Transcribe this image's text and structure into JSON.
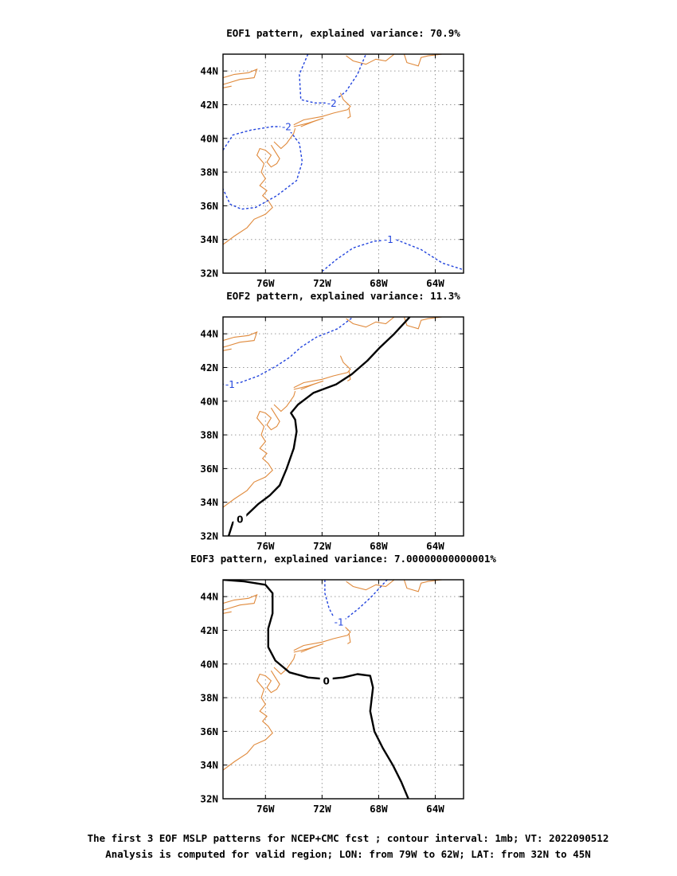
{
  "colors": {
    "coast": "#e08a3c",
    "negative_contour": "#2244dd",
    "zero_contour": "#000000",
    "grid": "#9a9a9a"
  },
  "caption": {
    "line1": "The first 3 EOF MSLP patterns for NCEP+CMC fcst ; contour interval: 1mb; VT: 2022090512",
    "line2": "Analysis is computed for valid region; LON: from 79W to 62W; LAT: from 32N to 45N"
  },
  "chart_data": [
    {
      "type": "contour map",
      "title": "EOF1 pattern, explained variance: 70.9%",
      "xlim": [
        -79,
        -62
      ],
      "ylim": [
        32,
        45
      ],
      "x_ticks": [
        -76,
        -72,
        -68,
        -64
      ],
      "x_tick_labels": [
        "76W",
        "72W",
        "68W",
        "64W"
      ],
      "y_ticks": [
        32,
        34,
        36,
        38,
        40,
        42,
        44
      ],
      "y_tick_labels": [
        "32N",
        "34N",
        "36N",
        "38N",
        "40N",
        "42N",
        "44N"
      ],
      "grid": true,
      "contours": [
        {
          "level": -2,
          "label": "-2",
          "style": "dashed",
          "color": "blue",
          "points": [
            [
              -73.0,
              45.0
            ],
            [
              -73.6,
              43.8
            ],
            [
              -73.5,
              42.3
            ],
            [
              -72.5,
              42.1
            ],
            [
              -71.3,
              42.1
            ],
            [
              -70.3,
              42.8
            ],
            [
              -69.5,
              43.8
            ],
            [
              -68.9,
              45.0
            ]
          ],
          "label_at": [
            -71.3,
            42.1
          ]
        },
        {
          "level": -2,
          "label": "-2",
          "style": "dashed",
          "color": "blue",
          "points": [
            [
              -79.0,
              39.3
            ],
            [
              -78.3,
              40.2
            ],
            [
              -77.0,
              40.5
            ],
            [
              -75.5,
              40.7
            ],
            [
              -74.5,
              40.7
            ],
            [
              -73.6,
              39.7
            ],
            [
              -73.4,
              38.6
            ],
            [
              -73.8,
              37.5
            ],
            [
              -75.2,
              36.6
            ],
            [
              -76.7,
              35.9
            ],
            [
              -77.7,
              35.8
            ],
            [
              -78.5,
              36.1
            ],
            [
              -79.0,
              37.0
            ]
          ],
          "label_at": [
            -74.5,
            40.7
          ]
        },
        {
          "level": -1,
          "label": "-1",
          "style": "dashed",
          "color": "blue",
          "points": [
            [
              -72.0,
              32.1
            ],
            [
              -71.0,
              32.8
            ],
            [
              -69.8,
              33.5
            ],
            [
              -68.3,
              33.9
            ],
            [
              -66.8,
              34.0
            ],
            [
              -65.0,
              33.4
            ],
            [
              -63.5,
              32.6
            ],
            [
              -62.0,
              32.2
            ]
          ],
          "label_at": [
            -67.3,
            34.0
          ]
        }
      ]
    },
    {
      "type": "contour map",
      "title": "EOF2 pattern, explained variance: 11.3%",
      "xlim": [
        -79,
        -62
      ],
      "ylim": [
        32,
        45
      ],
      "x_ticks": [
        -76,
        -72,
        -68,
        -64
      ],
      "x_tick_labels": [
        "76W",
        "72W",
        "68W",
        "64W"
      ],
      "y_ticks": [
        32,
        34,
        36,
        38,
        40,
        42,
        44
      ],
      "y_tick_labels": [
        "32N",
        "34N",
        "36N",
        "38N",
        "40N",
        "42N",
        "44N"
      ],
      "grid": true,
      "contours": [
        {
          "level": -1,
          "label": "-1",
          "style": "dashed",
          "color": "blue",
          "points": [
            [
              -79.0,
              41.0
            ],
            [
              -77.8,
              41.1
            ],
            [
              -76.5,
              41.5
            ],
            [
              -75.2,
              42.1
            ],
            [
              -74.3,
              42.6
            ],
            [
              -73.5,
              43.2
            ],
            [
              -72.4,
              43.8
            ],
            [
              -70.9,
              44.3
            ],
            [
              -69.8,
              45.0
            ]
          ],
          "label_at": [
            -78.5,
            41.0
          ]
        },
        {
          "level": 0,
          "label": "0",
          "style": "solid",
          "color": "black",
          "points": [
            [
              -78.6,
              32.0
            ],
            [
              -78.3,
              32.8
            ],
            [
              -77.5,
              33.1
            ],
            [
              -76.5,
              33.9
            ],
            [
              -75.7,
              34.4
            ],
            [
              -75.0,
              35.0
            ],
            [
              -74.5,
              36.0
            ],
            [
              -74.0,
              37.2
            ],
            [
              -73.8,
              38.2
            ],
            [
              -73.9,
              38.9
            ],
            [
              -74.2,
              39.3
            ],
            [
              -73.7,
              39.8
            ],
            [
              -72.6,
              40.5
            ],
            [
              -71.0,
              41.0
            ],
            [
              -69.9,
              41.6
            ],
            [
              -68.8,
              42.4
            ],
            [
              -67.9,
              43.2
            ],
            [
              -66.9,
              44.0
            ],
            [
              -65.8,
              45.0
            ]
          ],
          "label_at": [
            -77.8,
            33.0
          ]
        }
      ]
    },
    {
      "type": "contour map",
      "title": "EOF3 pattern, explained variance: 7.00000000000001%",
      "xlim": [
        -79,
        -62
      ],
      "ylim": [
        32,
        45
      ],
      "x_ticks": [
        -76,
        -72,
        -68,
        -64
      ],
      "x_tick_labels": [
        "76W",
        "72W",
        "68W",
        "64W"
      ],
      "y_ticks": [
        32,
        34,
        36,
        38,
        40,
        42,
        44
      ],
      "y_tick_labels": [
        "32N",
        "34N",
        "36N",
        "38N",
        "40N",
        "42N",
        "44N"
      ],
      "grid": true,
      "contours": [
        {
          "level": -1,
          "label": "-1",
          "style": "dashed",
          "color": "blue",
          "points": [
            [
              -71.8,
              45.0
            ],
            [
              -71.8,
              44.2
            ],
            [
              -71.5,
              43.3
            ],
            [
              -71.0,
              42.5
            ],
            [
              -70.3,
              42.7
            ],
            [
              -69.4,
              43.3
            ],
            [
              -68.5,
              44.0
            ],
            [
              -67.4,
              45.0
            ]
          ],
          "label_at": [
            -70.8,
            42.5
          ]
        },
        {
          "level": 0,
          "label": "0",
          "style": "solid",
          "color": "black",
          "points": [
            [
              -79.0,
              45.0
            ],
            [
              -77.5,
              44.9
            ],
            [
              -76.0,
              44.7
            ],
            [
              -75.5,
              44.2
            ],
            [
              -75.5,
              43.0
            ],
            [
              -75.8,
              42.1
            ],
            [
              -75.8,
              41.0
            ],
            [
              -75.3,
              40.2
            ],
            [
              -74.3,
              39.5
            ],
            [
              -73.0,
              39.2
            ],
            [
              -71.7,
              39.1
            ],
            [
              -70.5,
              39.2
            ],
            [
              -69.5,
              39.4
            ],
            [
              -68.6,
              39.3
            ],
            [
              -68.4,
              38.6
            ],
            [
              -68.6,
              37.2
            ],
            [
              -68.3,
              36.0
            ],
            [
              -67.7,
              35.0
            ],
            [
              -67.0,
              34.0
            ],
            [
              -66.4,
              33.0
            ],
            [
              -65.9,
              32.0
            ]
          ],
          "label_at": [
            -71.7,
            39.0
          ]
        }
      ]
    }
  ]
}
